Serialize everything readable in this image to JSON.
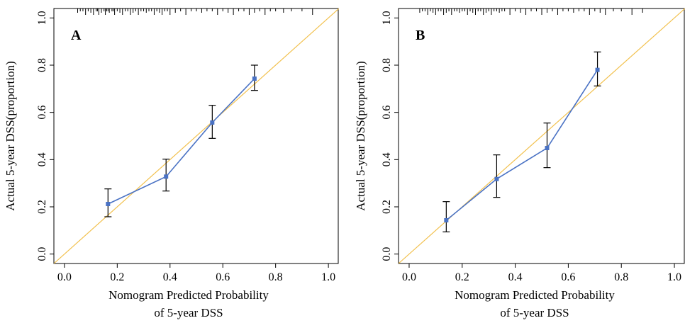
{
  "figure": {
    "ideal_line_color": "#f2c14e",
    "calibration_color": "#4a72c4",
    "errorbar_color": "#000000"
  },
  "chart_data": [
    {
      "type": "line",
      "panel_label": "A",
      "xlabel": [
        "Nomogram Predicted Probability",
        "of 5-year DSS"
      ],
      "ylabel": "Actual 5-year DSS(proportion)",
      "xlim": [
        -0.04,
        1.04
      ],
      "ylim": [
        -0.04,
        1.04
      ],
      "x_ticks": [
        "0.0",
        "0.2",
        "0.4",
        "0.6",
        "0.8",
        "1.0"
      ],
      "y_ticks": [
        "0.0",
        "0.2",
        "0.4",
        "0.6",
        "0.8",
        "1.0"
      ],
      "grid": false,
      "reference_line": "ideal y = x",
      "series": [
        {
          "x": [
            0.165,
            0.385,
            0.56,
            0.72
          ],
          "y": [
            0.212,
            0.328,
            0.557,
            0.743
          ],
          "lower": [
            0.158,
            0.267,
            0.49,
            0.693
          ],
          "upper": [
            0.276,
            0.402,
            0.63,
            0.8
          ]
        }
      ],
      "rug": [
        0.05,
        0.06,
        0.07,
        0.08,
        0.09,
        0.1,
        0.11,
        0.12,
        0.125,
        0.13,
        0.14,
        0.15,
        0.155,
        0.16,
        0.165,
        0.17,
        0.18,
        0.185,
        0.19,
        0.2,
        0.21,
        0.22,
        0.23,
        0.24,
        0.25,
        0.26,
        0.27,
        0.28,
        0.29,
        0.3,
        0.31,
        0.32,
        0.33,
        0.34,
        0.35,
        0.36,
        0.37,
        0.38,
        0.39,
        0.4,
        0.42,
        0.44,
        0.46,
        0.48,
        0.5,
        0.52,
        0.54,
        0.56,
        0.58,
        0.6,
        0.62,
        0.64,
        0.66,
        0.68,
        0.7,
        0.72,
        0.74,
        0.76,
        0.78,
        0.8,
        0.83,
        0.86,
        0.9,
        0.94
      ]
    },
    {
      "type": "line",
      "panel_label": "B",
      "xlabel": [
        "Nomogram Predicted Probability",
        "of 5-year DSS"
      ],
      "ylabel": "Actual 5-year DSS(proportion)",
      "xlim": [
        -0.04,
        1.04
      ],
      "ylim": [
        -0.04,
        1.04
      ],
      "x_ticks": [
        "0.0",
        "0.2",
        "0.4",
        "0.6",
        "0.8",
        "1.0"
      ],
      "y_ticks": [
        "0.0",
        "0.2",
        "0.4",
        "0.6",
        "0.8",
        "1.0"
      ],
      "grid": false,
      "reference_line": "ideal y = x",
      "series": [
        {
          "x": [
            0.14,
            0.33,
            0.52,
            0.71
          ],
          "y": [
            0.143,
            0.318,
            0.449,
            0.78
          ],
          "lower": [
            0.094,
            0.24,
            0.366,
            0.712
          ],
          "upper": [
            0.222,
            0.42,
            0.555,
            0.856
          ]
        }
      ],
      "rug": [
        0.04,
        0.05,
        0.06,
        0.07,
        0.08,
        0.09,
        0.1,
        0.11,
        0.12,
        0.13,
        0.14,
        0.15,
        0.16,
        0.17,
        0.18,
        0.19,
        0.2,
        0.21,
        0.22,
        0.23,
        0.24,
        0.25,
        0.26,
        0.27,
        0.28,
        0.29,
        0.3,
        0.31,
        0.32,
        0.33,
        0.34,
        0.35,
        0.36,
        0.38,
        0.4,
        0.42,
        0.44,
        0.46,
        0.48,
        0.5,
        0.52,
        0.54,
        0.56,
        0.58,
        0.6,
        0.62,
        0.64,
        0.66,
        0.68,
        0.7,
        0.72,
        0.74,
        0.77,
        0.8,
        0.84,
        0.88
      ]
    }
  ]
}
